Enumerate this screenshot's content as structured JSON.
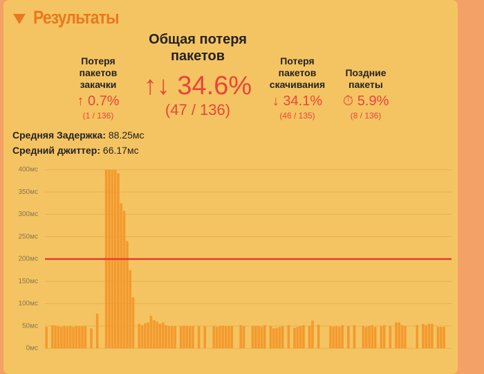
{
  "header": {
    "title": "Результаты"
  },
  "stats": [
    {
      "label": "Потеря пакетов закачки",
      "value": "↑ 0.7%",
      "detail": "(1 / 136)"
    },
    {
      "label": "Общая потеря пакетов",
      "value": "↑↓ 34.6%",
      "detail": "(47 / 136)"
    },
    {
      "label": "Потеря пакетов скачивания",
      "value": "↓ 34.1%",
      "detail": "(46 / 135)"
    },
    {
      "label": "Поздние пакеты",
      "value": "⏱ 5.9%",
      "detail": "(8 / 136)"
    }
  ],
  "latency": {
    "label": "Средняя Задержка:",
    "value": "88.25мс"
  },
  "jitter": {
    "label": "Средний джиттер:",
    "value": "66.17мс"
  },
  "chart_data": {
    "type": "bar",
    "color": "#f39a2e",
    "grid": true,
    "ylim": [
      0,
      400
    ],
    "yticks": [
      {
        "value": 0,
        "label": "0мс"
      },
      {
        "value": 50,
        "label": "50мс"
      },
      {
        "value": 100,
        "label": "100мс"
      },
      {
        "value": 150,
        "label": "150мс"
      },
      {
        "value": 200,
        "label": "200мс"
      },
      {
        "value": 250,
        "label": "250мс"
      },
      {
        "value": 300,
        "label": "300мс"
      },
      {
        "value": 350,
        "label": "350мс"
      },
      {
        "value": 400,
        "label": "400мс"
      }
    ],
    "reference_line": {
      "value": 200,
      "color": "#e53935"
    },
    "values": [
      48,
      null,
      52,
      51,
      49,
      48,
      50,
      49,
      50,
      48,
      50,
      49,
      50,
      50,
      null,
      45,
      null,
      78,
      null,
      null,
      400,
      400,
      400,
      400,
      392,
      325,
      308,
      240,
      175,
      114,
      null,
      55,
      52,
      56,
      58,
      73,
      63,
      60,
      55,
      58,
      52,
      50,
      50,
      50,
      null,
      50,
      51,
      50,
      50,
      50,
      null,
      50,
      null,
      50,
      null,
      null,
      50,
      48,
      50,
      51,
      50,
      50,
      50,
      null,
      null,
      52,
      50,
      null,
      null,
      50,
      50,
      50,
      48,
      52,
      null,
      50,
      45,
      46,
      48,
      50,
      null,
      52,
      null,
      46,
      48,
      50,
      52,
      null,
      50,
      62,
      null,
      53,
      null,
      null,
      null,
      50,
      48,
      50,
      48,
      52,
      null,
      50,
      null,
      52,
      null,
      null,
      50,
      48,
      50,
      52,
      48,
      null,
      50,
      52,
      null,
      50,
      null,
      58,
      58,
      52,
      50,
      null,
      null,
      null,
      52,
      null,
      55,
      52,
      55,
      55,
      null,
      48,
      48,
      48,
      null,
      null
    ]
  }
}
